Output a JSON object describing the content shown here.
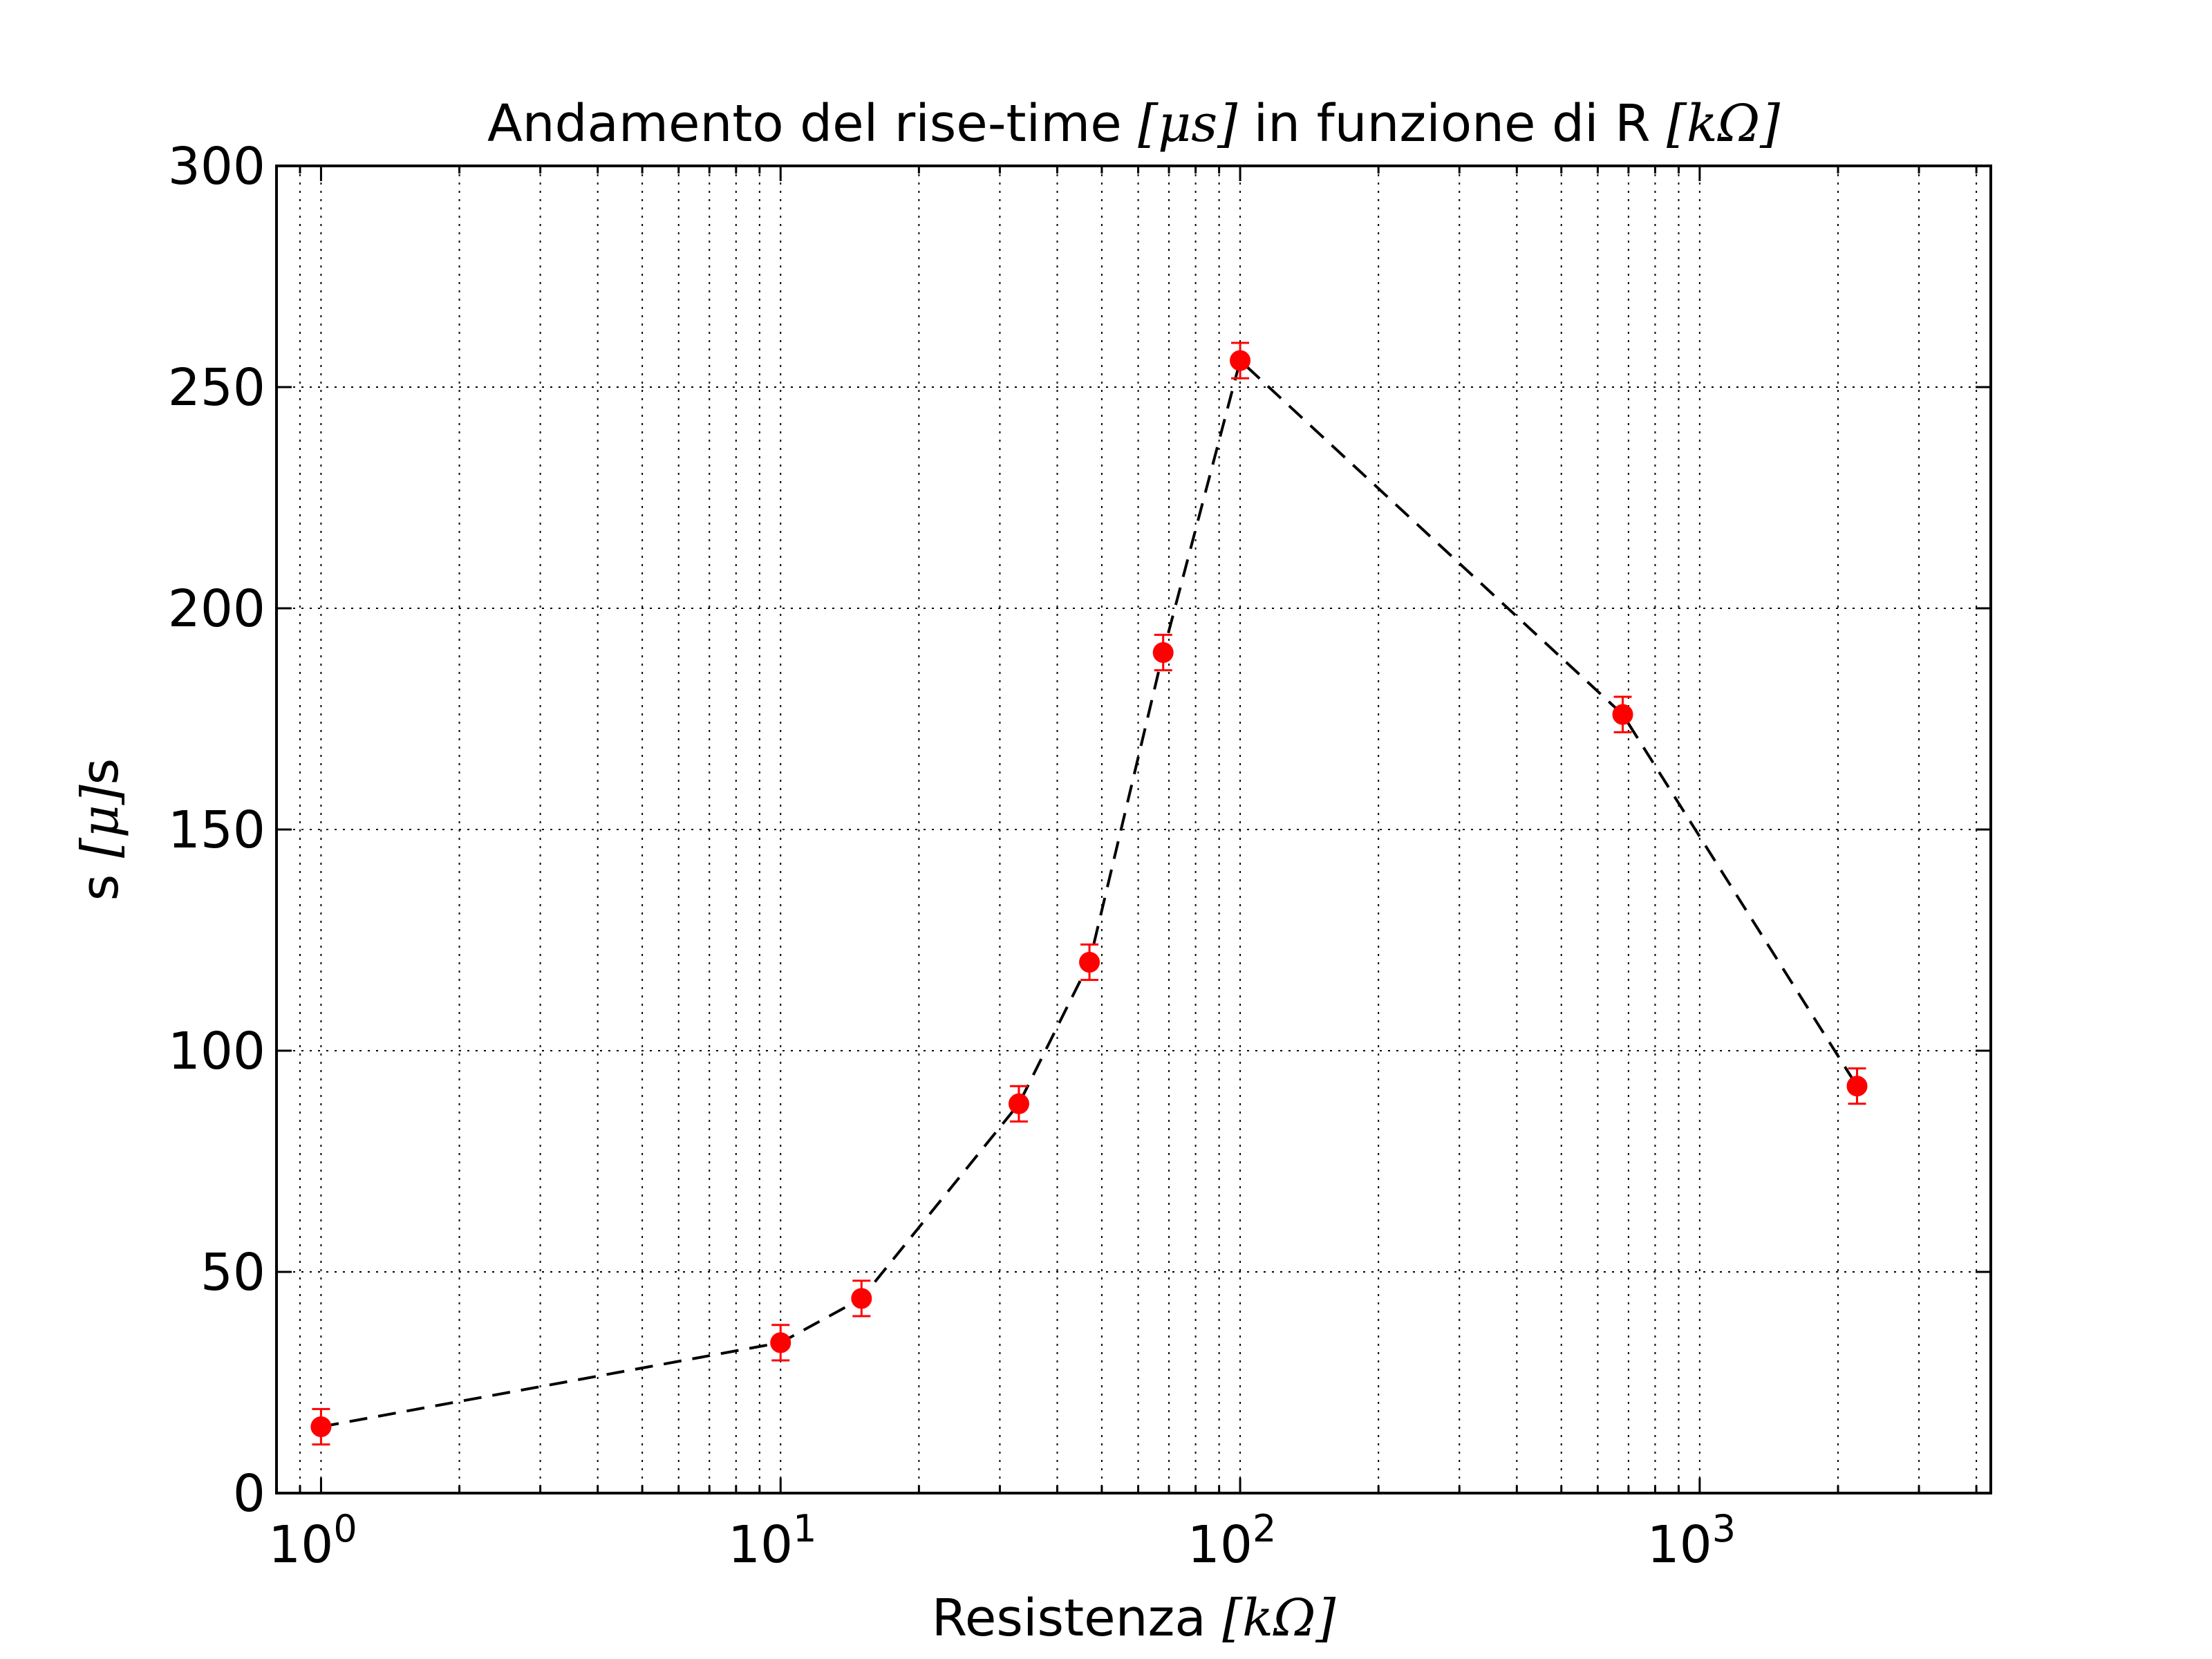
{
  "chart_data": {
    "type": "scatter",
    "title": "Andamento del rise-time [μs] in funzione di R [kΩ]",
    "title_parts": {
      "pre": "Andamento del rise-time ",
      "math1": "[μs]",
      "mid": " in funzione di R ",
      "math2": "[kΩ]"
    },
    "xlabel": "Resistenza [kΩ]",
    "xlabel_parts": {
      "pre": "Resistenza ",
      "math": "[kΩ]"
    },
    "ylabel": "s [μ]s",
    "ylabel_parts": {
      "pre": "s ",
      "math": "[μ]",
      "post": "s"
    },
    "x_scale": "log",
    "xlim": [
      0.8,
      4300
    ],
    "ylim": [
      0,
      300
    ],
    "x_ticks": [
      {
        "value": 1,
        "base": "10",
        "exp": "0"
      },
      {
        "value": 10,
        "base": "10",
        "exp": "1"
      },
      {
        "value": 100,
        "base": "10",
        "exp": "2"
      },
      {
        "value": 1000,
        "base": "10",
        "exp": "3"
      }
    ],
    "y_ticks": [
      "0",
      "50",
      "100",
      "150",
      "200",
      "250",
      "300"
    ],
    "grid": "dotted, major and minor",
    "series": [
      {
        "marker_color": "#ff0000",
        "line_color": "#000000",
        "line_style": "dashed",
        "points": [
          {
            "x": 1,
            "y": 15,
            "err": 4
          },
          {
            "x": 10,
            "y": 34,
            "err": 4
          },
          {
            "x": 15,
            "y": 44,
            "err": 4
          },
          {
            "x": 33,
            "y": 88,
            "err": 4
          },
          {
            "x": 47,
            "y": 120,
            "err": 4
          },
          {
            "x": 68,
            "y": 190,
            "err": 4
          },
          {
            "x": 100,
            "y": 256,
            "err": 4
          },
          {
            "x": 680,
            "y": 176,
            "err": 4
          },
          {
            "x": 2200,
            "y": 92,
            "err": 4
          }
        ]
      }
    ]
  }
}
